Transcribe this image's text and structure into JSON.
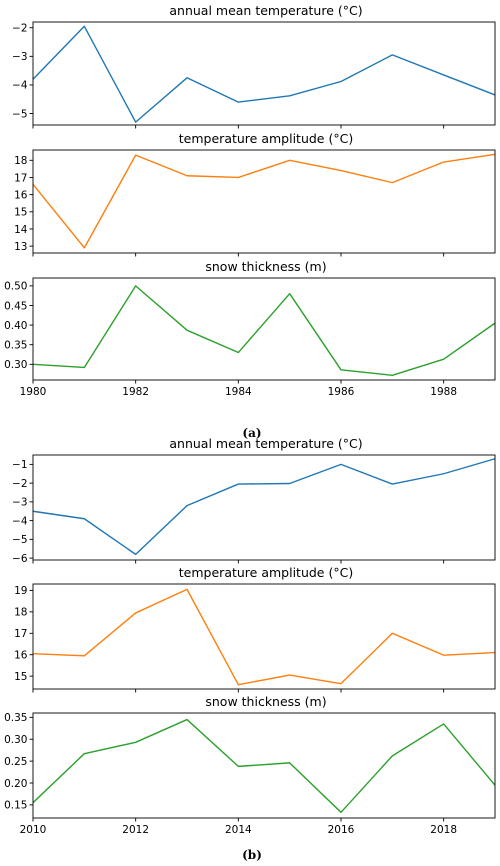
{
  "figures": [
    {
      "caption": "(a)",
      "years": [
        1980,
        1981,
        1982,
        1983,
        1984,
        1985,
        1986,
        1987,
        1988,
        1989
      ],
      "xlim": [
        1980,
        1989
      ],
      "xticks": [
        1980,
        1982,
        1984,
        1986,
        1988
      ],
      "panels": [
        {
          "title": "annual mean temperature (°C)",
          "color": "#1f77b4",
          "values": [
            -3.8,
            -1.95,
            -5.3,
            -3.75,
            -4.6,
            -4.38,
            -3.88,
            -2.95,
            -3.65,
            -4.35
          ],
          "ylim": [
            -5.4,
            -1.8
          ],
          "yticks": [
            -2,
            -3,
            -4,
            -5
          ],
          "ytick_labels": [
            "−2",
            "−3",
            "−4",
            "−5"
          ]
        },
        {
          "title": "temperature amplitude (°C)",
          "color": "#ff7f0e",
          "values": [
            16.6,
            12.9,
            18.3,
            17.1,
            17.0,
            18.0,
            17.4,
            16.7,
            17.9,
            18.35
          ],
          "ylim": [
            12.6,
            18.6
          ],
          "yticks": [
            18,
            17,
            16,
            15,
            14,
            13
          ],
          "ytick_labels": [
            "18",
            "17",
            "16",
            "15",
            "14",
            "13"
          ]
        },
        {
          "title": "snow thickness (m)",
          "color": "#2ca02c",
          "values": [
            0.3,
            0.292,
            0.5,
            0.387,
            0.33,
            0.48,
            0.286,
            0.272,
            0.313,
            0.405
          ],
          "ylim": [
            0.26,
            0.52
          ],
          "yticks": [
            0.5,
            0.45,
            0.4,
            0.35,
            0.3
          ],
          "ytick_labels": [
            "0.50",
            "0.45",
            "0.40",
            "0.35",
            "0.30"
          ]
        }
      ]
    },
    {
      "caption": "(b)",
      "years": [
        2010,
        2011,
        2012,
        2013,
        2014,
        2015,
        2016,
        2017,
        2018,
        2019
      ],
      "xlim": [
        2010,
        2019
      ],
      "xticks": [
        2010,
        2012,
        2014,
        2016,
        2018
      ],
      "panels": [
        {
          "title": "annual mean temperature (°C)",
          "color": "#1f77b4",
          "values": [
            -3.5,
            -3.9,
            -5.8,
            -3.2,
            -2.05,
            -2.02,
            -1.0,
            -2.05,
            -1.5,
            -0.7
          ],
          "ylim": [
            -6.1,
            -0.5
          ],
          "yticks": [
            -1,
            -2,
            -3,
            -4,
            -5,
            -6
          ],
          "ytick_labels": [
            "−1",
            "−2",
            "−3",
            "−4",
            "−5",
            "−6"
          ]
        },
        {
          "title": "temperature amplitude (°C)",
          "color": "#ff7f0e",
          "values": [
            16.05,
            15.95,
            17.95,
            19.05,
            14.6,
            15.05,
            14.65,
            17.0,
            15.98,
            16.1
          ],
          "ylim": [
            14.4,
            19.3
          ],
          "yticks": [
            19,
            18,
            17,
            16,
            15
          ],
          "ytick_labels": [
            "19",
            "18",
            "17",
            "16",
            "15"
          ]
        },
        {
          "title": "snow thickness (m)",
          "color": "#2ca02c",
          "values": [
            0.155,
            0.267,
            0.293,
            0.345,
            0.238,
            0.246,
            0.133,
            0.262,
            0.335,
            0.195
          ],
          "ylim": [
            0.12,
            0.36
          ],
          "yticks": [
            0.35,
            0.3,
            0.25,
            0.2,
            0.15
          ],
          "ytick_labels": [
            "0.35",
            "0.30",
            "0.25",
            "0.20",
            "0.15"
          ]
        }
      ]
    }
  ],
  "chart_data": [
    {
      "type": "line",
      "title": "annual mean temperature (°C)",
      "x": [
        1980,
        1981,
        1982,
        1983,
        1984,
        1985,
        1986,
        1987,
        1988,
        1989
      ],
      "series": [
        {
          "values": [
            -3.8,
            -1.95,
            -5.3,
            -3.75,
            -4.6,
            -4.38,
            -3.88,
            -2.95,
            -3.65,
            -4.35
          ]
        }
      ],
      "xlim": [
        1980,
        1989
      ],
      "ylim": [
        -5.4,
        -1.8
      ],
      "grid": false
    },
    {
      "type": "line",
      "title": "temperature amplitude (°C)",
      "x": [
        1980,
        1981,
        1982,
        1983,
        1984,
        1985,
        1986,
        1987,
        1988,
        1989
      ],
      "series": [
        {
          "values": [
            16.6,
            12.9,
            18.3,
            17.1,
            17.0,
            18.0,
            17.4,
            16.7,
            17.9,
            18.35
          ]
        }
      ],
      "xlim": [
        1980,
        1989
      ],
      "ylim": [
        12.6,
        18.6
      ],
      "grid": false
    },
    {
      "type": "line",
      "title": "snow thickness (m)",
      "x": [
        1980,
        1981,
        1982,
        1983,
        1984,
        1985,
        1986,
        1987,
        1988,
        1989
      ],
      "series": [
        {
          "values": [
            0.3,
            0.292,
            0.5,
            0.387,
            0.33,
            0.48,
            0.286,
            0.272,
            0.313,
            0.405
          ]
        }
      ],
      "xlim": [
        1980,
        1989
      ],
      "ylim": [
        0.26,
        0.52
      ],
      "grid": false
    },
    {
      "type": "line",
      "title": "annual mean temperature (°C)",
      "x": [
        2010,
        2011,
        2012,
        2013,
        2014,
        2015,
        2016,
        2017,
        2018,
        2019
      ],
      "series": [
        {
          "values": [
            -3.5,
            -3.9,
            -5.8,
            -3.2,
            -2.05,
            -2.02,
            -1.0,
            -2.05,
            -1.5,
            -0.7
          ]
        }
      ],
      "xlim": [
        2010,
        2019
      ],
      "ylim": [
        -6.1,
        -0.5
      ],
      "grid": false
    },
    {
      "type": "line",
      "title": "temperature amplitude (°C)",
      "x": [
        2010,
        2011,
        2012,
        2013,
        2014,
        2015,
        2016,
        2017,
        2018,
        2019
      ],
      "series": [
        {
          "values": [
            16.05,
            15.95,
            17.95,
            19.05,
            14.6,
            15.05,
            14.65,
            17.0,
            15.98,
            16.1
          ]
        }
      ],
      "xlim": [
        2010,
        2019
      ],
      "ylim": [
        14.4,
        19.3
      ],
      "grid": false
    },
    {
      "type": "line",
      "title": "snow thickness (m)",
      "x": [
        2010,
        2011,
        2012,
        2013,
        2014,
        2015,
        2016,
        2017,
        2018,
        2019
      ],
      "series": [
        {
          "values": [
            0.155,
            0.267,
            0.293,
            0.345,
            0.238,
            0.246,
            0.133,
            0.262,
            0.335,
            0.195
          ]
        }
      ],
      "xlim": [
        2010,
        2019
      ],
      "ylim": [
        0.12,
        0.36
      ],
      "grid": false
    }
  ]
}
